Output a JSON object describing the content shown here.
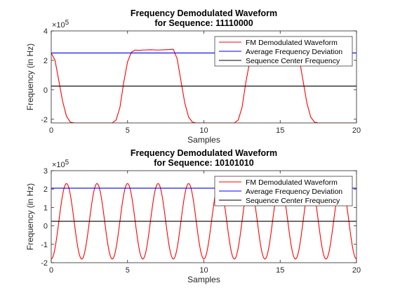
{
  "chart_data": [
    {
      "type": "line",
      "title": [
        "Frequency Demodulated Waveform",
        "for Sequence:  11110000"
      ],
      "xlabel": "Samples",
      "ylabel": "Frequency (in Hz)",
      "y_exponent_base": "×10",
      "y_exponent": "5",
      "xlim": [
        0,
        20
      ],
      "ylim": [
        -225000,
        400000
      ],
      "xticks": [
        0,
        5,
        10,
        15,
        20
      ],
      "yticks": [
        -200000,
        0,
        200000,
        400000
      ],
      "ytick_labels": [
        "-2",
        "0",
        "2",
        "4"
      ],
      "grid": false,
      "legend_position": "top-right",
      "series": [
        {
          "name": "FM Demodulated Waveform",
          "color": "#ff0000",
          "x": [
            0,
            0.25,
            0.5,
            0.75,
            1,
            1.25,
            1.5,
            2,
            2.5,
            3,
            3.5,
            4,
            4.25,
            4.5,
            4.75,
            5,
            5.25,
            5.5,
            5.75,
            6,
            6.5,
            7,
            7.5,
            8,
            8.25,
            8.5,
            8.75,
            9,
            9.25,
            9.5,
            10,
            10.5,
            11,
            11.5,
            12,
            12.25,
            12.5,
            12.75,
            13,
            13.25,
            13.5,
            13.75,
            14,
            14.5,
            15,
            15.5,
            16,
            16.25,
            16.5,
            16.75,
            17,
            17.25,
            17.5,
            18,
            18.5,
            19,
            19.5,
            20
          ],
          "y": [
            250000,
            200000,
            60000,
            -80000,
            -180000,
            -220000,
            -225000,
            -225000,
            -225000,
            -225000,
            -225000,
            -225000,
            -205000,
            -120000,
            50000,
            190000,
            255000,
            270000,
            268000,
            270000,
            272000,
            270000,
            272000,
            275000,
            210000,
            60000,
            -90000,
            -185000,
            -220000,
            -225000,
            -225000,
            -225000,
            -225000,
            -225000,
            -225000,
            -205000,
            -120000,
            50000,
            190000,
            255000,
            270000,
            268000,
            272000,
            270000,
            272000,
            272000,
            275000,
            210000,
            60000,
            -90000,
            -185000,
            -220000,
            -225000,
            -225000,
            -225000,
            -225000,
            -225000,
            -225000
          ]
        },
        {
          "name": "Average Frequency Deviation",
          "color": "#0000ff",
          "x": [
            0,
            20
          ],
          "y": [
            250000,
            250000
          ]
        },
        {
          "name": "Sequence Center Frequency",
          "color": "#000000",
          "x": [
            0,
            20
          ],
          "y": [
            25000,
            25000
          ]
        }
      ]
    },
    {
      "type": "line",
      "title": [
        "Frequency Demodulated Waveform",
        "for Sequence:  10101010"
      ],
      "xlabel": "Samples",
      "ylabel": "Frequency (in Hz)",
      "y_exponent_base": "×10",
      "y_exponent": "5",
      "xlim": [
        0,
        20
      ],
      "ylim": [
        -200000,
        300000
      ],
      "xticks": [
        0,
        5,
        10,
        15,
        20
      ],
      "yticks": [
        -200000,
        -100000,
        0,
        100000,
        200000,
        300000
      ],
      "ytick_labels": [
        "-2",
        "-1",
        "0",
        "1",
        "2",
        "3"
      ],
      "grid": false,
      "legend_position": "top-right",
      "series": [
        {
          "name": "FM Demodulated Waveform",
          "color": "#ff0000",
          "wave": {
            "center": 25000,
            "amplitude": 205000,
            "period": 2,
            "phase_peak_at": 1,
            "x_start": 0,
            "x_end": 20,
            "steps": 400
          }
        },
        {
          "name": "Average Frequency Deviation",
          "color": "#0000ff",
          "x": [
            0,
            20
          ],
          "y": [
            205000,
            205000
          ]
        },
        {
          "name": "Sequence Center Frequency",
          "color": "#000000",
          "x": [
            0,
            20
          ],
          "y": [
            25000,
            25000
          ]
        }
      ]
    }
  ]
}
